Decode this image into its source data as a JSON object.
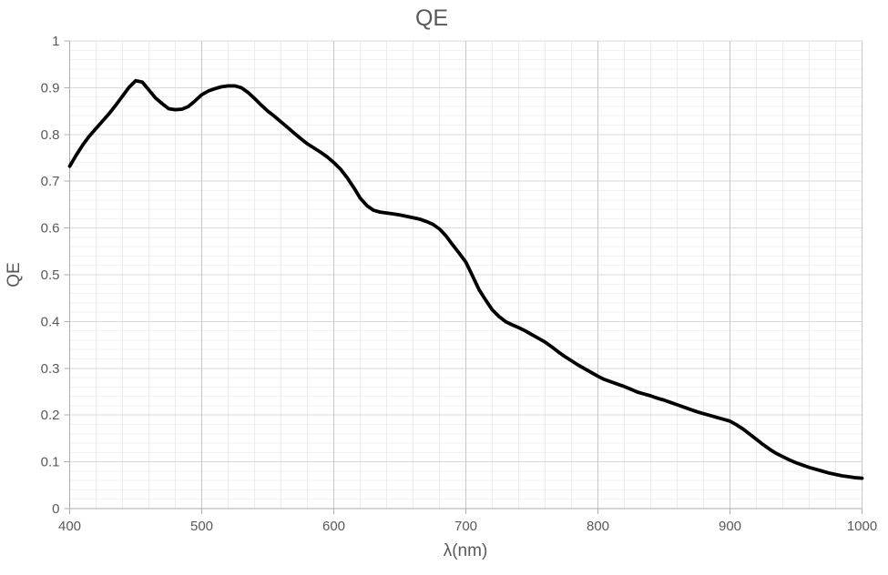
{
  "chart_data": {
    "type": "line",
    "title": "QE",
    "xlabel": "λ(nm)",
    "ylabel": "QE",
    "xlim": [
      400,
      1000
    ],
    "ylim": [
      0,
      1
    ],
    "x_major_step": 100,
    "x_minor_step": 20,
    "y_major_step": 0.1,
    "y_minor_step": 0.02,
    "grid": "major and minor gridlines on, both axes",
    "legend": "none",
    "x_tick_labels": [
      "400",
      "500",
      "600",
      "700",
      "800",
      "900",
      "1000"
    ],
    "y_tick_labels": [
      "0",
      "0.1",
      "0.2",
      "0.3",
      "0.4",
      "0.5",
      "0.6",
      "0.7",
      "0.8",
      "0.9",
      "1"
    ],
    "colors": {
      "line": "#000000",
      "major_grid_h": "#d9d9d9",
      "major_grid_v": "#c6c6c6",
      "minor_grid_h": "#f2f2f2",
      "minor_grid_v": "#ececec",
      "axis_line": "#adadad",
      "text": "#595959",
      "background": "#ffffff"
    },
    "series": [
      {
        "name": "QE",
        "color": "#000000",
        "line_width": 3.8,
        "x": [
          400,
          405,
          410,
          415,
          420,
          425,
          430,
          435,
          440,
          445,
          450,
          455,
          460,
          465,
          470,
          475,
          480,
          485,
          490,
          495,
          500,
          505,
          510,
          515,
          520,
          525,
          530,
          535,
          540,
          545,
          550,
          555,
          560,
          565,
          570,
          575,
          580,
          585,
          590,
          595,
          600,
          605,
          610,
          615,
          620,
          625,
          630,
          635,
          640,
          645,
          650,
          655,
          660,
          665,
          670,
          675,
          680,
          685,
          690,
          695,
          700,
          705,
          710,
          715,
          720,
          725,
          730,
          735,
          740,
          745,
          750,
          755,
          760,
          765,
          770,
          775,
          780,
          785,
          790,
          795,
          800,
          805,
          810,
          815,
          820,
          825,
          830,
          835,
          840,
          845,
          850,
          855,
          860,
          865,
          870,
          875,
          880,
          885,
          890,
          895,
          900,
          905,
          910,
          915,
          920,
          925,
          930,
          935,
          940,
          945,
          950,
          955,
          960,
          965,
          970,
          975,
          980,
          985,
          990,
          995,
          1000
        ],
        "y": [
          0.732,
          0.756,
          0.778,
          0.797,
          0.813,
          0.829,
          0.845,
          0.863,
          0.882,
          0.901,
          0.915,
          0.912,
          0.895,
          0.878,
          0.866,
          0.855,
          0.853,
          0.854,
          0.86,
          0.872,
          0.885,
          0.893,
          0.898,
          0.902,
          0.904,
          0.904,
          0.9,
          0.89,
          0.877,
          0.863,
          0.85,
          0.839,
          0.827,
          0.815,
          0.803,
          0.791,
          0.78,
          0.771,
          0.762,
          0.752,
          0.74,
          0.726,
          0.708,
          0.687,
          0.664,
          0.648,
          0.638,
          0.634,
          0.632,
          0.63,
          0.628,
          0.625,
          0.622,
          0.619,
          0.614,
          0.608,
          0.598,
          0.583,
          0.564,
          0.546,
          0.527,
          0.498,
          0.468,
          0.446,
          0.425,
          0.411,
          0.4,
          0.393,
          0.387,
          0.38,
          0.372,
          0.364,
          0.356,
          0.346,
          0.335,
          0.325,
          0.316,
          0.307,
          0.299,
          0.291,
          0.283,
          0.276,
          0.271,
          0.266,
          0.261,
          0.255,
          0.249,
          0.245,
          0.241,
          0.236,
          0.232,
          0.227,
          0.222,
          0.217,
          0.212,
          0.207,
          0.203,
          0.199,
          0.195,
          0.191,
          0.187,
          0.179,
          0.17,
          0.159,
          0.148,
          0.137,
          0.127,
          0.118,
          0.111,
          0.104,
          0.098,
          0.093,
          0.088,
          0.084,
          0.08,
          0.076,
          0.073,
          0.07,
          0.068,
          0.066,
          0.065
        ]
      }
    ]
  }
}
